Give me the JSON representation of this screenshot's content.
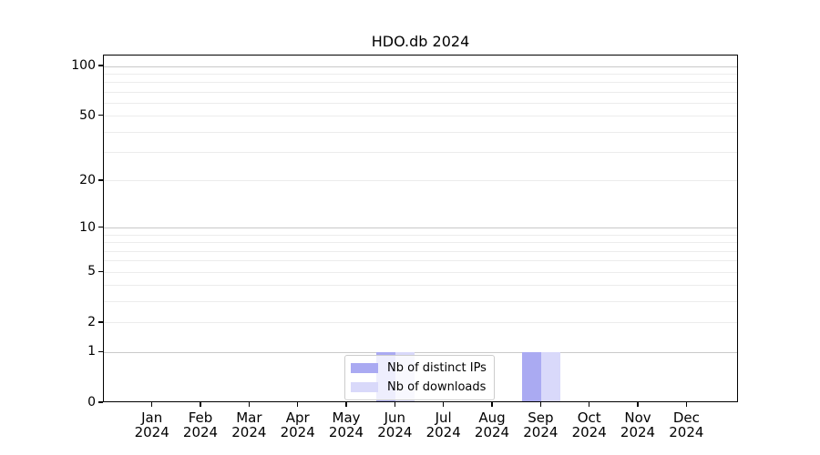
{
  "title": "HDO.db 2024",
  "chart_data": {
    "type": "bar",
    "title": "HDO.db 2024",
    "categories": [
      {
        "month": "Jan",
        "year": "2024"
      },
      {
        "month": "Feb",
        "year": "2024"
      },
      {
        "month": "Mar",
        "year": "2024"
      },
      {
        "month": "Apr",
        "year": "2024"
      },
      {
        "month": "May",
        "year": "2024"
      },
      {
        "month": "Jun",
        "year": "2024"
      },
      {
        "month": "Jul",
        "year": "2024"
      },
      {
        "month": "Aug",
        "year": "2024"
      },
      {
        "month": "Sep",
        "year": "2024"
      },
      {
        "month": "Oct",
        "year": "2024"
      },
      {
        "month": "Nov",
        "year": "2024"
      },
      {
        "month": "Dec",
        "year": "2024"
      }
    ],
    "series": [
      {
        "name": "Nb of distinct IPs",
        "color": "#aaaaf2",
        "values": [
          0,
          0,
          0,
          0,
          0,
          1,
          0,
          0,
          1,
          0,
          0,
          0
        ]
      },
      {
        "name": "Nb of downloads",
        "color": "#d9d9fa",
        "values": [
          0,
          0,
          0,
          0,
          0,
          1,
          0,
          0,
          1,
          0,
          0,
          0
        ]
      }
    ],
    "yscale": "log1p",
    "ylim": [
      0,
      100
    ],
    "yticks": [
      0,
      1,
      2,
      5,
      10,
      20,
      50,
      100
    ],
    "grid": {
      "major": [
        1,
        10,
        100
      ],
      "minor": [
        2,
        3,
        4,
        5,
        6,
        7,
        8,
        9,
        20,
        30,
        40,
        50,
        60,
        70,
        80,
        90
      ]
    },
    "legend": {
      "position": "lower center"
    },
    "colors": {
      "grid_major": "#c9c9c9",
      "grid_minor": "#ececec",
      "axis": "#000000",
      "background": "#ffffff"
    }
  }
}
